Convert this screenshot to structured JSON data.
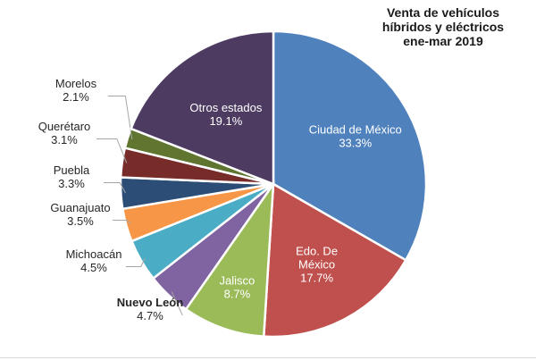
{
  "chart_data": {
    "type": "pie",
    "title_lines": [
      "Venta de vehículos",
      "híbridos y eléctricos",
      "ene-mar 2019"
    ],
    "slices": [
      {
        "name": "Ciudad de México",
        "name_lines": [
          "Ciudad de México"
        ],
        "pct_label": "33.3%",
        "value": 33.3,
        "color": "#4f81bd"
      },
      {
        "name": "Edo. De México",
        "name_lines": [
          "Edo. De",
          "México"
        ],
        "pct_label": "17.7%",
        "value": 17.7,
        "color": "#c0504d"
      },
      {
        "name": "Jalisco",
        "name_lines": [
          "Jalisco"
        ],
        "pct_label": "8.7%",
        "value": 8.7,
        "color": "#9bbb59"
      },
      {
        "name": "Nuevo León",
        "name_lines": [
          "Nuevo León"
        ],
        "pct_label": "4.7%",
        "value": 4.7,
        "color": "#8064a2"
      },
      {
        "name": "Michoacán",
        "name_lines": [
          "Michoacán"
        ],
        "pct_label": "4.5%",
        "value": 4.5,
        "color": "#4bacc6"
      },
      {
        "name": "Guanajuato",
        "name_lines": [
          "Guanajuato"
        ],
        "pct_label": "3.5%",
        "value": 3.5,
        "color": "#f79646"
      },
      {
        "name": "Puebla",
        "name_lines": [
          "Puebla"
        ],
        "pct_label": "3.3%",
        "value": 3.3,
        "color": "#2c4d75"
      },
      {
        "name": "Querétaro",
        "name_lines": [
          "Querétaro"
        ],
        "pct_label": "3.1%",
        "value": 3.1,
        "color": "#772c2a"
      },
      {
        "name": "Morelos",
        "name_lines": [
          "Morelos"
        ],
        "pct_label": "2.1%",
        "value": 2.1,
        "color": "#5f7530"
      },
      {
        "name": "Otros estados",
        "name_lines": [
          "Otros estados"
        ],
        "pct_label": "19.1%",
        "value": 19.1,
        "color": "#4d3b62"
      }
    ]
  }
}
